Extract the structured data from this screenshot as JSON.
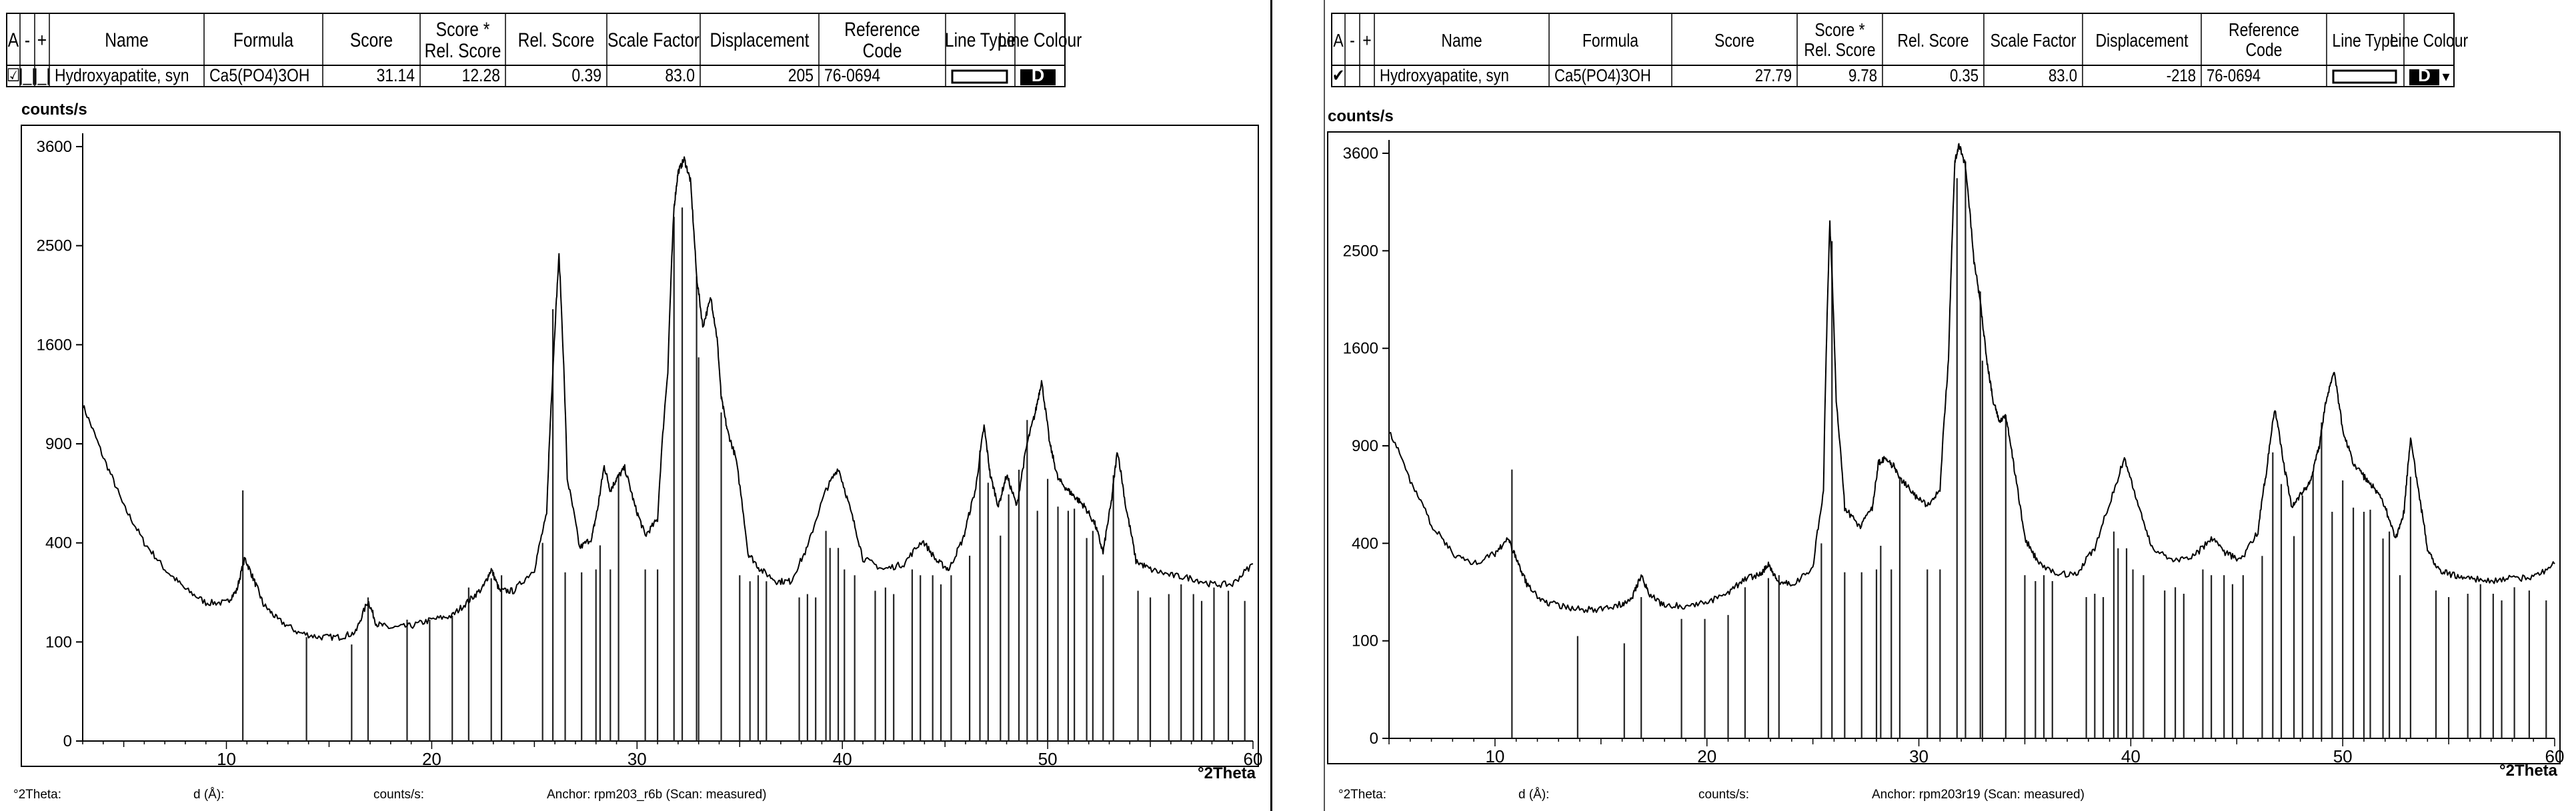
{
  "panels": [
    {
      "table": {
        "headers": [
          "A",
          "-",
          "+",
          "Name",
          "Formula",
          "Score",
          "Score * Rel. Score",
          "Rel. Score",
          "Scale Factor",
          "Displacement",
          "Reference Code",
          "Line Type",
          "Line Colour"
        ],
        "row": {
          "check": "☑",
          "minus": "|_|",
          "plus": "|_|",
          "name": "Hydroxyapatite, syn",
          "formula": "Ca5(PO4)3OH",
          "score": "31.14",
          "score_rel": "12.28",
          "rel_score": "0.39",
          "scale": "83.0",
          "displacement": "205",
          "ref_code": "76-0694",
          "line_colour": "D"
        }
      },
      "footer": {
        "theta": "°2Theta:",
        "d": "d (Å):",
        "counts": "counts/s:",
        "anchor": "Anchor: rpm203_r6b  (Scan: measured)"
      },
      "chart_data": {
        "type": "line",
        "ylabel": "counts/s",
        "xlabel": "°2Theta",
        "xlim": [
          3,
          60
        ],
        "ylim": [
          0,
          3600
        ],
        "y_scale": "sqrt",
        "x_ticks": [
          10,
          20,
          30,
          40,
          50,
          60
        ],
        "y_ticks": [
          0,
          100,
          400,
          900,
          1600,
          2500,
          3600
        ],
        "grid": false,
        "series": [
          {
            "x": [
              3.0,
              4.0,
              5.0,
              6.0,
              7.0,
              8.0,
              9.0,
              10.0,
              10.5,
              10.9,
              11.3,
              11.8,
              12.5,
              13.5,
              14.5,
              15.5,
              16.3,
              16.9,
              17.3,
              18.0,
              19.0,
              20.0,
              21.0,
              21.8,
              22.5,
              22.9,
              23.3,
              24.0,
              25.0,
              25.6,
              25.9,
              26.2,
              26.6,
              27.2,
              27.8,
              28.1,
              28.4,
              28.7,
              29.0,
              29.4,
              29.9,
              30.4,
              31.0,
              31.5,
              31.8,
              32.0,
              32.3,
              32.6,
              32.9,
              33.2,
              33.6,
              33.9,
              34.1,
              34.4,
              34.8,
              35.4,
              36.0,
              36.8,
              37.5,
              38.3,
              39.2,
              39.8,
              40.4,
              41.0,
              42.0,
              43.0,
              43.9,
              44.6,
              45.2,
              45.9,
              46.5,
              46.9,
              47.2,
              47.6,
              48.0,
              48.5,
              49.0,
              49.4,
              49.7,
              50.1,
              50.5,
              51.0,
              51.4,
              51.8,
              52.3,
              52.7,
              53.1,
              53.4,
              53.8,
              54.3,
              55.0,
              56.0,
              57.0,
              58.0,
              59.0,
              60.0
            ],
            "y": [
              1150,
              820,
              560,
              400,
              300,
              235,
              195,
              195,
              230,
              340,
              270,
              190,
              150,
              120,
              110,
              110,
              120,
              200,
              140,
              130,
              135,
              150,
              160,
              200,
              240,
              300,
              230,
              230,
              300,
              520,
              1400,
              2400,
              700,
              380,
              420,
              560,
              770,
              640,
              700,
              760,
              560,
              430,
              500,
              1400,
              2900,
              3300,
              3450,
              3200,
              2200,
              1750,
              2000,
              1650,
              1200,
              980,
              820,
              360,
              300,
              260,
              260,
              380,
              640,
              760,
              540,
              340,
              300,
              320,
              410,
              330,
              300,
              420,
              650,
              1010,
              720,
              560,
              720,
              560,
              900,
              1100,
              1320,
              900,
              700,
              640,
              600,
              560,
              480,
              360,
              580,
              860,
              560,
              330,
              300,
              280,
              270,
              250,
              250,
              320
            ]
          }
        ],
        "reference_lines": {
          "x": [
            10.8,
            13.9,
            16.1,
            16.9,
            18.8,
            19.9,
            21.0,
            21.8,
            22.9,
            23.4,
            25.4,
            25.9,
            26.5,
            27.3,
            28.0,
            28.2,
            28.7,
            29.1,
            30.4,
            31.0,
            31.8,
            32.2,
            32.9,
            33.0,
            34.1,
            35.0,
            35.5,
            35.9,
            36.3,
            37.9,
            38.3,
            38.7,
            39.2,
            39.4,
            39.8,
            40.1,
            40.6,
            41.6,
            42.1,
            42.5,
            43.4,
            43.8,
            44.4,
            44.8,
            45.3,
            46.2,
            46.7,
            47.1,
            47.7,
            48.1,
            48.6,
            49.0,
            49.5,
            50.0,
            50.5,
            51.0,
            51.3,
            51.9,
            52.2,
            52.7,
            53.2,
            54.4,
            55.0,
            55.9,
            56.5,
            57.1,
            57.5,
            58.1,
            58.8,
            59.6
          ],
          "y": [
            640,
            110,
            95,
            210,
            150,
            150,
            160,
            240,
            270,
            280,
            400,
            1900,
            290,
            290,
            300,
            390,
            300,
            720,
            300,
            300,
            2800,
            2900,
            2200,
            1500,
            1100,
            280,
            260,
            280,
            260,
            210,
            220,
            210,
            450,
            380,
            380,
            300,
            280,
            230,
            240,
            220,
            300,
            280,
            280,
            250,
            280,
            350,
            860,
            680,
            430,
            620,
            750,
            1050,
            540,
            700,
            560,
            540,
            550,
            420,
            450,
            280,
            720,
            230,
            210,
            220,
            250,
            220,
            200,
            240,
            230,
            200
          ]
        }
      }
    },
    {
      "table": {
        "headers": [
          "A",
          "-",
          "+",
          "Name",
          "Formula",
          "Score",
          "Score * Rel. Score",
          "Rel. Score",
          "Scale Factor",
          "Displacement",
          "Reference Code",
          "Line Type",
          "Line Colour"
        ],
        "row": {
          "check": "✔",
          "minus": "",
          "plus": "",
          "name": "Hydroxyapatite, syn",
          "formula": "Ca5(PO4)3OH",
          "score": "27.79",
          "score_rel": "9.78",
          "rel_score": "0.35",
          "scale": "83.0",
          "displacement": "-218",
          "ref_code": "76-0694",
          "line_colour": "D"
        }
      },
      "footer": {
        "theta": "°2Theta:",
        "d": "d (Å):",
        "counts": "counts/s:",
        "anchor": "Anchor: rpm203r19  (Scan: measured)"
      },
      "chart_data": {
        "type": "line",
        "ylabel": "counts/s",
        "xlabel": "°2Theta",
        "xlim": [
          5,
          60
        ],
        "ylim": [
          0,
          3600
        ],
        "y_scale": "sqrt",
        "x_ticks": [
          10,
          20,
          30,
          40,
          50,
          60
        ],
        "y_ticks": [
          0,
          100,
          400,
          900,
          1600,
          2500,
          3600
        ],
        "grid": false,
        "series": [
          {
            "x": [
              5.0,
              6.0,
              7.0,
              8.0,
              9.0,
              10.0,
              10.6,
              11.0,
              11.5,
              12.2,
              13.0,
              14.0,
              15.0,
              16.0,
              16.5,
              16.9,
              17.3,
              18.0,
              19.0,
              20.0,
              21.0,
              21.8,
              22.5,
              22.9,
              23.3,
              24.0,
              25.0,
              25.5,
              25.8,
              26.1,
              26.5,
              27.2,
              27.8,
              28.1,
              28.4,
              28.8,
              29.2,
              29.8,
              30.4,
              31.0,
              31.4,
              31.7,
              31.9,
              32.2,
              32.6,
              32.9,
              33.2,
              33.5,
              33.8,
              34.1,
              34.5,
              35.0,
              35.6,
              36.5,
              37.5,
              38.3,
              39.2,
              39.7,
              40.3,
              41.0,
              42.0,
              43.0,
              43.8,
              44.5,
              45.2,
              46.0,
              46.4,
              46.8,
              47.2,
              47.6,
              48.0,
              48.5,
              48.9,
              49.2,
              49.6,
              50.0,
              50.5,
              51.0,
              51.5,
              52.0,
              52.5,
              52.9,
              53.2,
              53.6,
              54.0,
              54.5,
              55.2,
              56.0,
              57.0,
              58.0,
              59.0,
              60.0
            ],
            "y": [
              1000,
              700,
              480,
              360,
              320,
              360,
              420,
              340,
              250,
              200,
              185,
              175,
              175,
              190,
              215,
              280,
              215,
              185,
              185,
              195,
              220,
              270,
              280,
              320,
              260,
              250,
              300,
              640,
              2800,
              1200,
              560,
              470,
              560,
              800,
              820,
              780,
              700,
              620,
              570,
              650,
              1500,
              3500,
              3700,
              3450,
              2400,
              2000,
              1500,
              1200,
              1050,
              1100,
              760,
              420,
              330,
              280,
              290,
              380,
              640,
              830,
              580,
              380,
              330,
              350,
              420,
              360,
              330,
              450,
              750,
              1150,
              800,
              560,
              620,
              700,
              900,
              1200,
              1400,
              1000,
              800,
              720,
              660,
              560,
              420,
              540,
              940,
              620,
              380,
              300,
              280,
              270,
              260,
              270,
              270,
              320
            ]
          }
        ],
        "reference_lines": {
          "x": [
            10.8,
            13.9,
            16.1,
            16.9,
            18.8,
            19.9,
            21.0,
            21.8,
            22.9,
            23.4,
            25.4,
            25.9,
            26.5,
            27.3,
            28.0,
            28.2,
            28.7,
            29.1,
            30.4,
            31.0,
            31.8,
            32.2,
            32.9,
            33.0,
            34.1,
            35.0,
            35.5,
            35.9,
            36.3,
            37.9,
            38.3,
            38.7,
            39.2,
            39.4,
            39.8,
            40.1,
            40.6,
            41.6,
            42.1,
            42.5,
            43.4,
            43.8,
            44.4,
            44.8,
            45.3,
            46.2,
            46.7,
            47.1,
            47.7,
            48.1,
            48.6,
            49.0,
            49.5,
            50.0,
            50.5,
            51.0,
            51.3,
            51.9,
            52.2,
            52.7,
            53.2,
            54.4,
            55.0,
            55.9,
            56.5,
            57.1,
            57.5,
            58.1,
            58.8,
            59.6
          ],
          "y": [
            760,
            110,
            95,
            210,
            150,
            150,
            160,
            240,
            270,
            280,
            400,
            2600,
            290,
            290,
            300,
            390,
            300,
            720,
            300,
            300,
            3300,
            3500,
            2100,
            1500,
            1100,
            280,
            260,
            280,
            260,
            210,
            220,
            210,
            450,
            380,
            380,
            300,
            280,
            230,
            240,
            220,
            300,
            280,
            280,
            250,
            280,
            350,
            860,
            680,
            430,
            620,
            750,
            1050,
            540,
            700,
            560,
            540,
            550,
            420,
            450,
            280,
            720,
            230,
            210,
            220,
            250,
            220,
            200,
            240,
            230,
            200
          ]
        }
      }
    }
  ]
}
